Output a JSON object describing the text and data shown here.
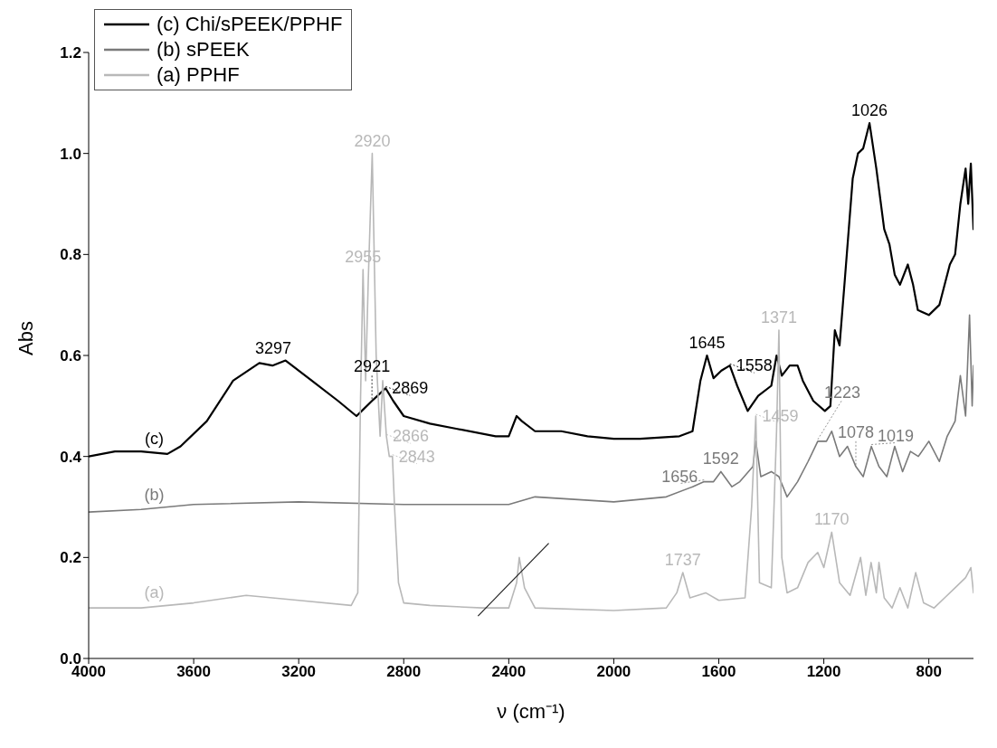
{
  "chart_data": {
    "type": "line",
    "xlabel": "ν (cm⁻¹)",
    "ylabel": "Abs",
    "xlim": [
      4000,
      630
    ],
    "xticks": [
      4000,
      3600,
      3200,
      2800,
      2400,
      2000,
      1600,
      1200,
      800
    ],
    "ylim": [
      0,
      1.2
    ],
    "yticks": [
      {
        "value": 0,
        "label": "0.0"
      },
      0.2,
      0.4,
      0.6,
      0.8,
      {
        "value": 1,
        "label": "1.0"
      },
      1.2
    ],
    "legend": "top left",
    "grid": false,
    "marker": "none",
    "line_style": "solid",
    "series": [
      {
        "name": "(c) Chi/sPEEK/PPHF",
        "color": "#000000",
        "x": [
          4000,
          3900,
          3800,
          3700,
          3650,
          3550,
          3450,
          3350,
          3300,
          3250,
          3150,
          3050,
          2980,
          2960,
          2921,
          2900,
          2869,
          2840,
          2800,
          2700,
          2600,
          2450,
          2400,
          2370,
          2350,
          2300,
          2200,
          2100,
          2000,
          1900,
          1750,
          1700,
          1670,
          1645,
          1620,
          1590,
          1558,
          1530,
          1490,
          1450,
          1400,
          1380,
          1360,
          1330,
          1300,
          1280,
          1240,
          1196,
          1175,
          1158,
          1140,
          1120,
          1090,
          1070,
          1050,
          1026,
          1000,
          970,
          950,
          930,
          910,
          880,
          860,
          842,
          800,
          760,
          720,
          700,
          680,
          660,
          650,
          640,
          630
        ],
        "values": [
          0.4,
          0.41,
          0.41,
          0.405,
          0.42,
          0.47,
          0.55,
          0.585,
          0.58,
          0.59,
          0.55,
          0.51,
          0.48,
          0.49,
          0.51,
          0.52,
          0.535,
          0.51,
          0.48,
          0.465,
          0.455,
          0.44,
          0.44,
          0.48,
          0.47,
          0.45,
          0.45,
          0.44,
          0.435,
          0.435,
          0.44,
          0.45,
          0.55,
          0.6,
          0.555,
          0.57,
          0.58,
          0.54,
          0.49,
          0.52,
          0.54,
          0.6,
          0.56,
          0.58,
          0.58,
          0.55,
          0.51,
          0.49,
          0.5,
          0.65,
          0.62,
          0.75,
          0.95,
          1.0,
          1.01,
          1.06,
          0.97,
          0.85,
          0.82,
          0.76,
          0.74,
          0.78,
          0.74,
          0.69,
          0.68,
          0.7,
          0.78,
          0.8,
          0.9,
          0.97,
          0.9,
          0.98,
          0.85
        ]
      },
      {
        "name": "(b) sPEEK",
        "color": "#7a7a7a",
        "x": [
          4000,
          3800,
          3600,
          3200,
          2800,
          2400,
          2300,
          2000,
          1800,
          1700,
          1656,
          1620,
          1592,
          1550,
          1520,
          1470,
          1459,
          1440,
          1400,
          1371,
          1340,
          1300,
          1260,
          1223,
          1190,
          1170,
          1140,
          1110,
          1078,
          1050,
          1019,
          990,
          960,
          930,
          900,
          870,
          840,
          800,
          760,
          730,
          700,
          680,
          660,
          645,
          635,
          630
        ],
        "values": [
          0.29,
          0.295,
          0.305,
          0.31,
          0.305,
          0.305,
          0.32,
          0.31,
          0.32,
          0.34,
          0.35,
          0.35,
          0.37,
          0.34,
          0.35,
          0.38,
          0.43,
          0.36,
          0.37,
          0.36,
          0.32,
          0.35,
          0.39,
          0.43,
          0.43,
          0.45,
          0.4,
          0.42,
          0.38,
          0.36,
          0.42,
          0.38,
          0.36,
          0.42,
          0.37,
          0.41,
          0.4,
          0.43,
          0.39,
          0.44,
          0.47,
          0.56,
          0.48,
          0.68,
          0.5,
          0.58
        ]
      },
      {
        "name": "(a) PPHF",
        "color": "#b8b8b8",
        "x": [
          4000,
          3800,
          3600,
          3400,
          3200,
          3000,
          2975,
          2965,
          2955,
          2945,
          2935,
          2920,
          2905,
          2890,
          2880,
          2866,
          2855,
          2843,
          2835,
          2820,
          2800,
          2700,
          2500,
          2400,
          2370,
          2360,
          2340,
          2300,
          2000,
          1800,
          1760,
          1737,
          1710,
          1650,
          1600,
          1500,
          1475,
          1459,
          1445,
          1400,
          1380,
          1371,
          1360,
          1340,
          1300,
          1260,
          1223,
          1200,
          1170,
          1140,
          1100,
          1060,
          1040,
          1020,
          1000,
          990,
          970,
          940,
          910,
          880,
          850,
          820,
          780,
          740,
          700,
          660,
          640,
          630
        ],
        "values": [
          0.1,
          0.1,
          0.11,
          0.125,
          0.115,
          0.105,
          0.13,
          0.5,
          0.77,
          0.55,
          0.75,
          1.0,
          0.6,
          0.44,
          0.55,
          0.44,
          0.4,
          0.4,
          0.3,
          0.15,
          0.11,
          0.105,
          0.1,
          0.1,
          0.15,
          0.2,
          0.14,
          0.1,
          0.095,
          0.1,
          0.13,
          0.17,
          0.12,
          0.13,
          0.115,
          0.12,
          0.3,
          0.48,
          0.15,
          0.14,
          0.45,
          0.65,
          0.2,
          0.13,
          0.14,
          0.19,
          0.21,
          0.18,
          0.25,
          0.15,
          0.125,
          0.2,
          0.125,
          0.19,
          0.13,
          0.19,
          0.12,
          0.1,
          0.14,
          0.1,
          0.17,
          0.11,
          0.1,
          0.12,
          0.14,
          0.16,
          0.18,
          0.13
        ]
      }
    ],
    "annotations": [
      {
        "text": "(c)",
        "x": 3750,
        "y": 0.41
      },
      {
        "text": "(b)",
        "x": 3750,
        "y": 0.3
      },
      {
        "text": "(a)",
        "x": 3750,
        "y": 0.105
      },
      {
        "text": "3297",
        "x": 3297,
        "y": 0.59
      },
      {
        "text": "2921",
        "x": 2921,
        "y": 0.51
      },
      {
        "text": "2869",
        "x": 2869,
        "y": 0.535
      },
      {
        "text": "2920",
        "x": 2920,
        "y": 1.0
      },
      {
        "text": "2955",
        "x": 2955,
        "y": 0.77
      },
      {
        "text": "2866",
        "x": 2866,
        "y": 0.44
      },
      {
        "text": "2843",
        "x": 2843,
        "y": 0.4
      },
      {
        "text": "1645",
        "x": 1645,
        "y": 0.6
      },
      {
        "text": "1558",
        "x": 1558,
        "y": 0.58
      },
      {
        "text": "1026",
        "x": 1026,
        "y": 1.06
      },
      {
        "text": "1371",
        "x": 1371,
        "y": 0.65
      },
      {
        "text": "1459",
        "x": 1459,
        "y": 0.48
      },
      {
        "text": "1223",
        "x": 1223,
        "y": 0.43
      },
      {
        "text": "1078",
        "x": 1078,
        "y": 0.38
      },
      {
        "text": "1019",
        "x": 1019,
        "y": 0.42
      },
      {
        "text": "1656",
        "x": 1656,
        "y": 0.35
      },
      {
        "text": "1592",
        "x": 1592,
        "y": 0.37
      },
      {
        "text": "1737",
        "x": 1737,
        "y": 0.17
      },
      {
        "text": "1170",
        "x": 1170,
        "y": 0.25
      }
    ]
  }
}
